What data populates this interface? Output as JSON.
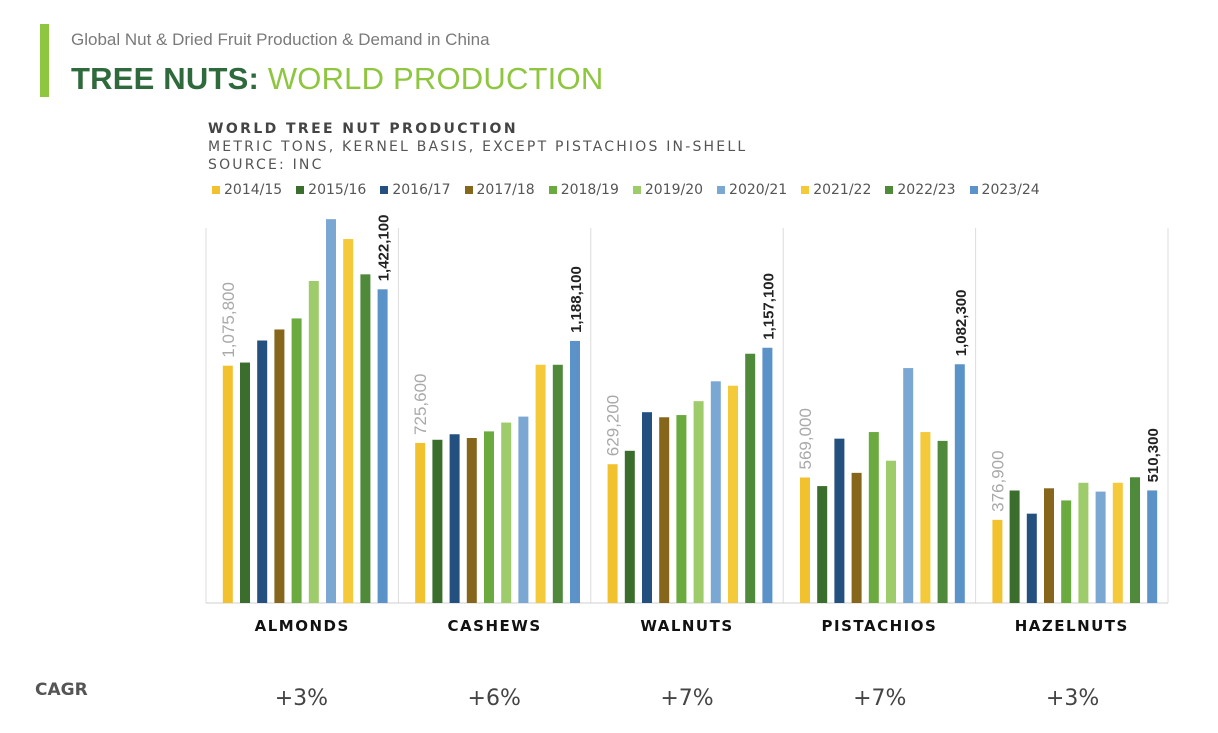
{
  "header": {
    "subtitle": "Global Nut & Dried Fruit Production & Demand in China",
    "title_bold": "TREE NUTS:",
    "title_light": " WORLD PRODUCTION"
  },
  "colors": {
    "accent": "#8fc640",
    "title_dark": "#2f6a3c"
  },
  "chart_data": {
    "type": "bar",
    "title": "WORLD TREE NUT PRODUCTION",
    "subtitle_lines": [
      "METRIC TONS, KERNEL BASIS, EXCEPT PISTACHIOS IN-SHELL",
      "SOURCE: INC"
    ],
    "categories": [
      "ALMONDS",
      "CASHEWS",
      "WALNUTS",
      "PISTACHIOS",
      "HAZELNUTS"
    ],
    "ylim": [
      0,
      1700000
    ],
    "grid": false,
    "legend_position": "top",
    "series": [
      {
        "name": "2014/15",
        "color": "#f2c12e",
        "values": [
          1075800,
          725600,
          629200,
          569000,
          376900
        ]
      },
      {
        "name": "2015/16",
        "color": "#3b6d2d",
        "values": [
          1090000,
          740000,
          690000,
          530000,
          510000
        ]
      },
      {
        "name": "2016/17",
        "color": "#24507f",
        "values": [
          1190000,
          765000,
          865000,
          745000,
          405000
        ]
      },
      {
        "name": "2017/18",
        "color": "#86661b",
        "values": [
          1240000,
          748000,
          842000,
          590000,
          520000
        ]
      },
      {
        "name": "2018/19",
        "color": "#6aaa3f",
        "values": [
          1290000,
          778000,
          852000,
          775000,
          465000
        ]
      },
      {
        "name": "2019/20",
        "color": "#9fcc6a",
        "values": [
          1460000,
          818000,
          915000,
          645000,
          545000
        ]
      },
      {
        "name": "2020/21",
        "color": "#7ba7d3",
        "values": [
          1740000,
          845000,
          1005000,
          1065000,
          505000
        ]
      },
      {
        "name": "2021/22",
        "color": "#f5ca3a",
        "values": [
          1650000,
          1080000,
          985000,
          775000,
          545000
        ]
      },
      {
        "name": "2022/23",
        "color": "#4f8a3a",
        "values": [
          1490000,
          1080000,
          1130000,
          735000,
          570000
        ]
      },
      {
        "name": "2023/24",
        "color": "#5b93c9",
        "values": [
          1422100,
          1188100,
          1157100,
          1082300,
          510300
        ]
      }
    ],
    "start_labels": [
      "1,075,800",
      "725,600",
      "629,200",
      "569,000",
      "376,900"
    ],
    "end_labels": [
      "1,422,100",
      "1,188,100",
      "1,157,100",
      "1,082,300",
      "510,300"
    ],
    "cagr_label": "CAGR",
    "cagr": [
      "+3%",
      "+6%",
      "+7%",
      "+7%",
      "+3%"
    ]
  }
}
